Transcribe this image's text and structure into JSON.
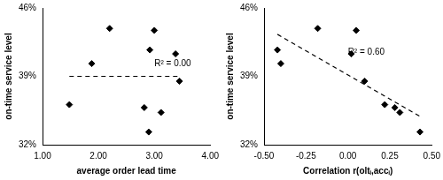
{
  "chart_data": [
    {
      "type": "scatter",
      "x_label": "average order lead time",
      "y_label": "on-time service level",
      "xlim": [
        1,
        4
      ],
      "xticks": [
        {
          "value": 1,
          "label": "1.00"
        },
        {
          "value": 2,
          "label": "2.00"
        },
        {
          "value": 3,
          "label": "3.00"
        },
        {
          "value": 4,
          "label": "4.00"
        }
      ],
      "ylim": [
        32,
        46
      ],
      "yticks": [
        {
          "value": 32,
          "label": "32%"
        },
        {
          "value": 39,
          "label": "39%"
        },
        {
          "value": 46,
          "label": "46%"
        }
      ],
      "grid": false,
      "series": [
        {
          "type": "scatter",
          "marker": "diamond",
          "color": "#000000",
          "x": [
            1.48,
            1.88,
            2.2,
            2.82,
            2.9,
            2.92,
            3.0,
            3.12,
            3.38,
            3.45
          ],
          "values": [
            36.1,
            40.3,
            43.9,
            35.8,
            33.3,
            41.7,
            43.7,
            35.3,
            41.3,
            38.5
          ]
        },
        {
          "type": "line",
          "line_style": "dashed",
          "color": "#000000",
          "x": [
            1.48,
            3.45
          ],
          "values": [
            39.0,
            39.0
          ]
        }
      ],
      "annotations": [
        {
          "text": "R² = 0.00",
          "x": 3.0,
          "y": 39.8
        }
      ]
    },
    {
      "type": "scatter",
      "x_label": "Correlation r(oltᵢ,accᵢ)",
      "y_label": "on-time service level",
      "xlim": [
        -0.5,
        0.5
      ],
      "xticks": [
        {
          "value": -0.5,
          "label": "-0.50"
        },
        {
          "value": -0.25,
          "label": "-0.25"
        },
        {
          "value": 0,
          "label": "0.00"
        },
        {
          "value": 0.25,
          "label": "0.25"
        },
        {
          "value": 0.5,
          "label": "0.50"
        }
      ],
      "ylim": [
        32,
        46
      ],
      "yticks": [
        {
          "value": 32,
          "label": "32%"
        },
        {
          "value": 39,
          "label": "39%"
        },
        {
          "value": 46,
          "label": "46%"
        }
      ],
      "grid": false,
      "series": [
        {
          "type": "scatter",
          "marker": "diamond",
          "color": "#000000",
          "x": [
            -0.42,
            -0.4,
            -0.18,
            0.02,
            0.05,
            0.1,
            0.22,
            0.28,
            0.31,
            0.43
          ],
          "values": [
            41.7,
            40.3,
            43.9,
            41.3,
            43.7,
            38.5,
            36.1,
            35.8,
            35.3,
            33.3
          ]
        },
        {
          "type": "line",
          "line_style": "dashed",
          "color": "#000000",
          "x": [
            -0.42,
            0.43
          ],
          "values": [
            43.3,
            34.9
          ]
        }
      ],
      "annotations": [
        {
          "text": "R² = 0.60",
          "x": 0.0,
          "y": 41.0
        }
      ]
    }
  ]
}
